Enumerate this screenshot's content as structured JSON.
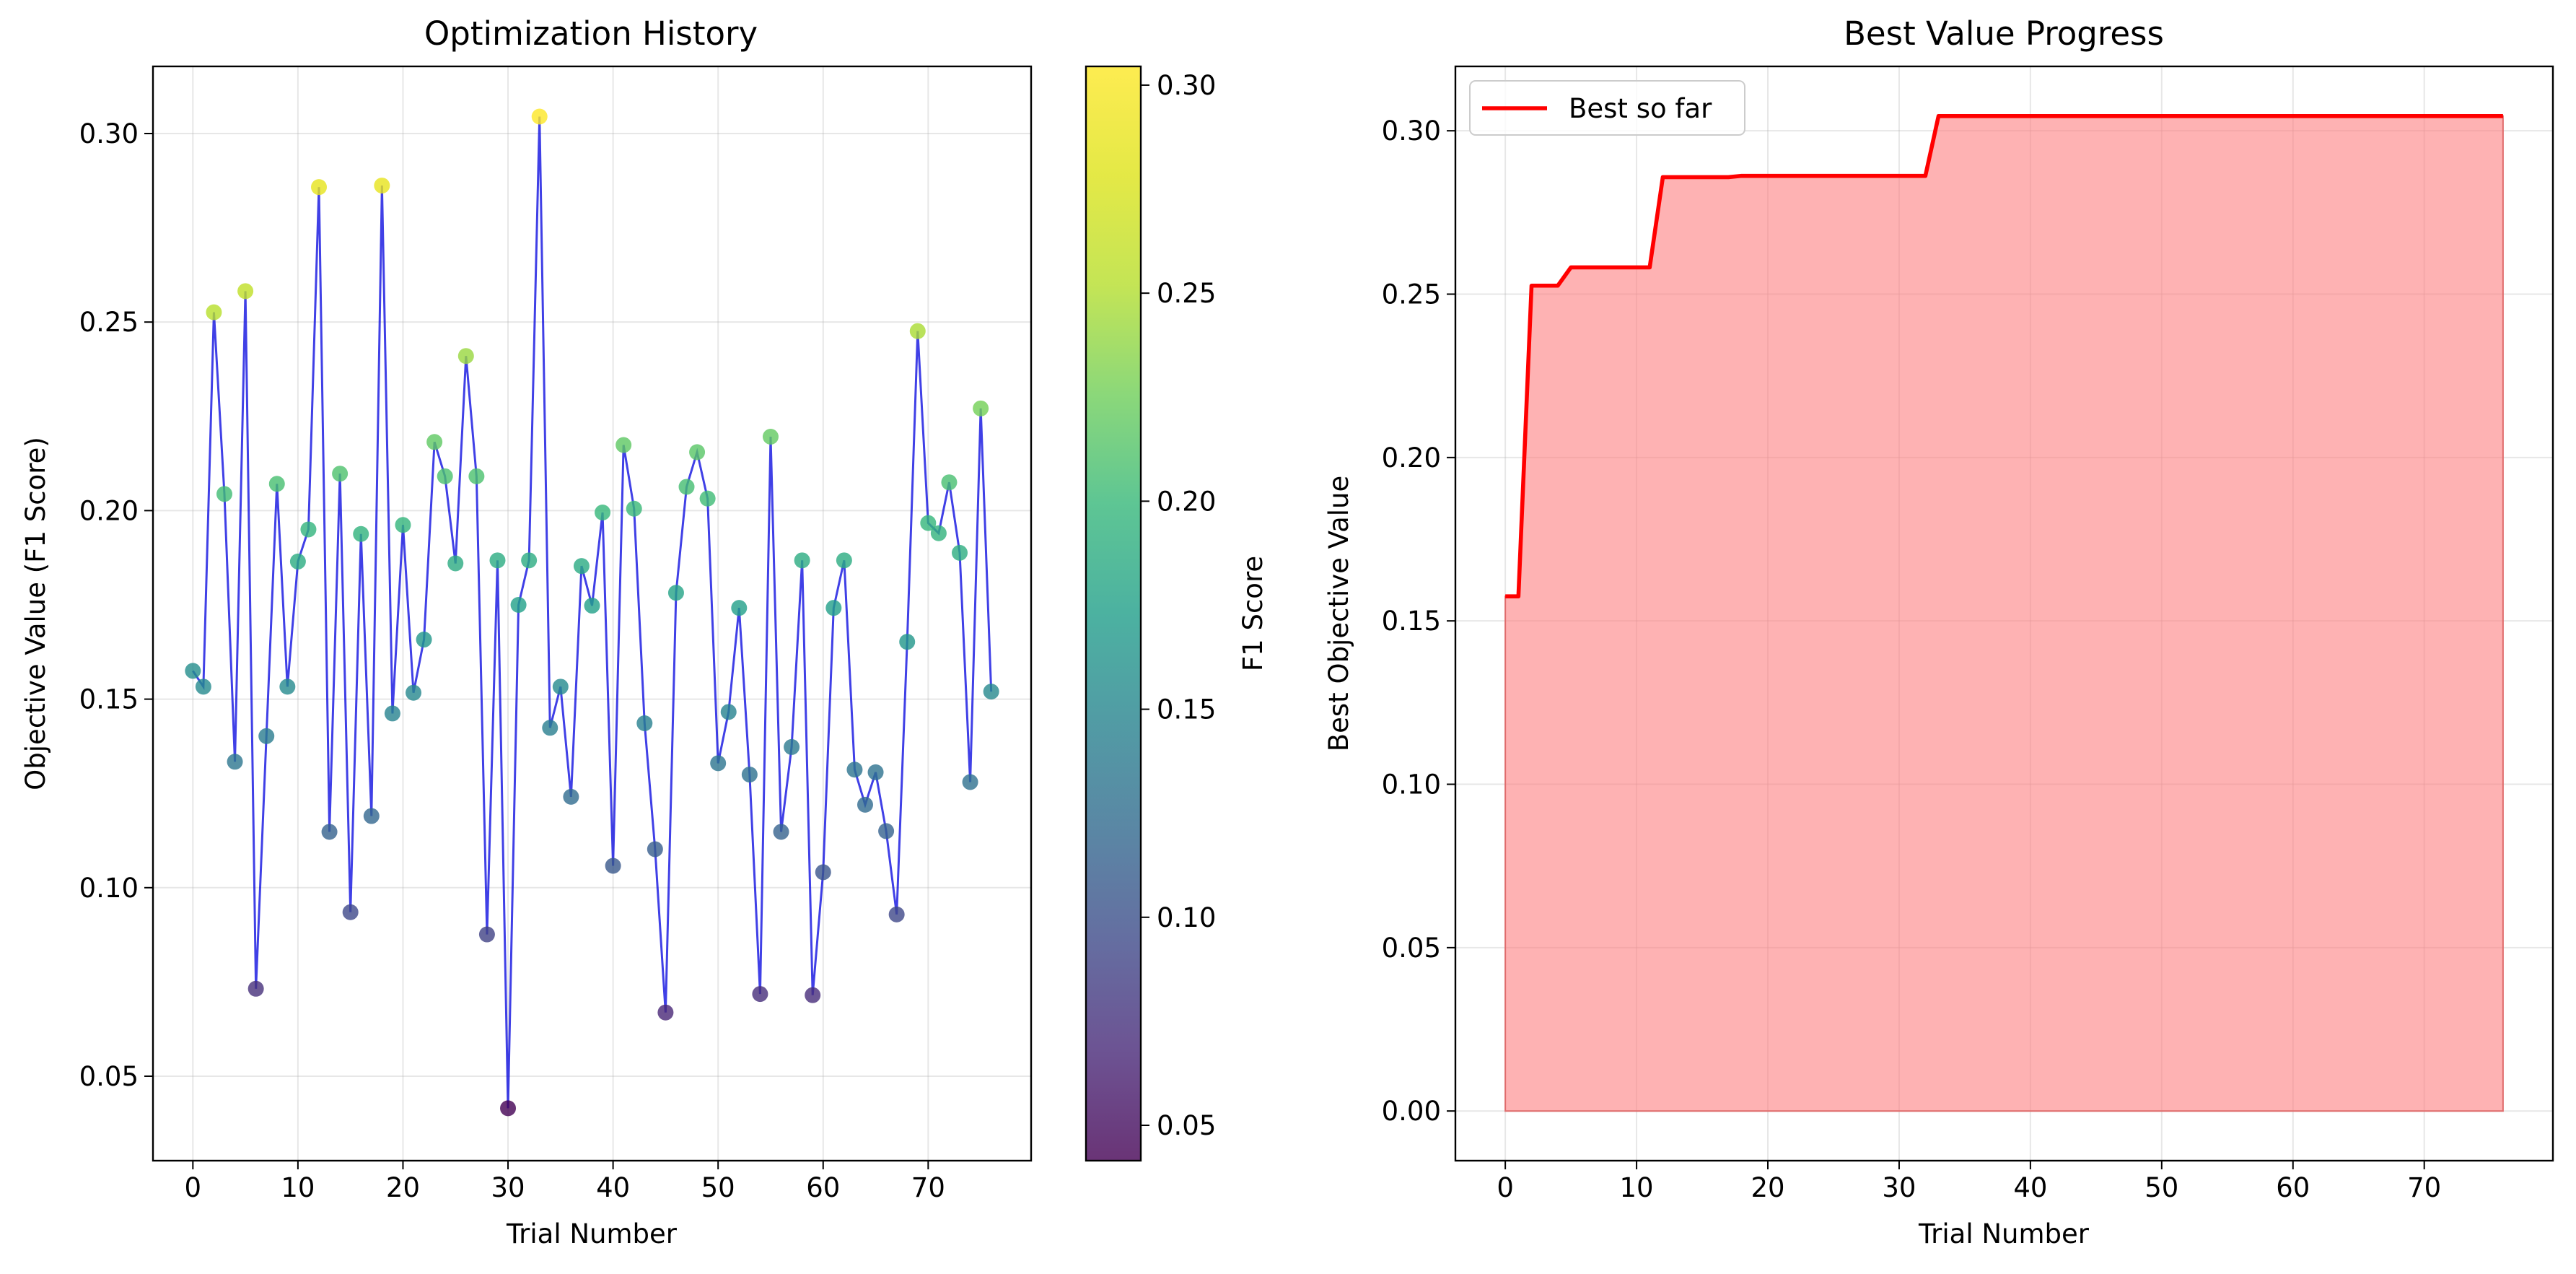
{
  "chart_data": [
    {
      "type": "scatter",
      "title": "Optimization History",
      "xlabel": "Trial Number",
      "ylabel": "Objective Value (F1 Score)",
      "xlim": [
        -3.8,
        79.8
      ],
      "ylim": [
        0.0276,
        0.3178
      ],
      "xticks": [
        0,
        10,
        20,
        30,
        40,
        50,
        60,
        70
      ],
      "yticks": [
        0.05,
        0.1,
        0.15,
        0.2,
        0.25,
        0.3
      ],
      "grid": true,
      "line_color": "#0000dd",
      "colormap": "viridis",
      "colorbar": {
        "label": "F1 Score",
        "range": [
          0.0415,
          0.3045
        ],
        "ticks": [
          0.05,
          0.1,
          0.15,
          0.2,
          0.25,
          0.3
        ]
      },
      "series": [
        {
          "x": [
            0,
            1,
            2,
            3,
            4,
            5,
            6,
            7,
            8,
            9,
            10,
            11,
            12,
            13,
            14,
            15,
            16,
            17,
            18,
            19,
            20,
            21,
            22,
            23,
            24,
            25,
            26,
            27,
            28,
            29,
            30,
            31,
            32,
            33,
            34,
            35,
            36,
            37,
            38,
            39,
            40,
            41,
            42,
            43,
            44,
            45,
            46,
            47,
            48,
            49,
            50,
            51,
            52,
            53,
            54,
            55,
            56,
            57,
            58,
            59,
            60,
            61,
            62,
            63,
            64,
            65,
            66,
            67,
            68,
            69,
            70,
            71,
            72,
            73,
            74,
            75,
            76
          ],
          "y": [
            0.1575,
            0.1533,
            0.2526,
            0.2044,
            0.1334,
            0.2582,
            0.0732,
            0.1402,
            0.2071,
            0.1533,
            0.1865,
            0.195,
            0.2858,
            0.1148,
            0.2098,
            0.0935,
            0.1938,
            0.119,
            0.2862,
            0.1462,
            0.1962,
            0.1517,
            0.1658,
            0.2182,
            0.2091,
            0.186,
            0.241,
            0.2091,
            0.0876,
            0.1868,
            0.0415,
            0.175,
            0.1868,
            0.3045,
            0.1424,
            0.1533,
            0.1241,
            0.1853,
            0.1748,
            0.1995,
            0.1058,
            0.2174,
            0.2005,
            0.1436,
            0.1102,
            0.0669,
            0.1782,
            0.2063,
            0.2155,
            0.2032,
            0.133,
            0.1466,
            0.1742,
            0.13,
            0.0718,
            0.2196,
            0.1148,
            0.1373,
            0.1868,
            0.0715,
            0.1041,
            0.1742,
            0.1868,
            0.1313,
            0.122,
            0.1306,
            0.115,
            0.0929,
            0.1652,
            0.2476,
            0.1967,
            0.194,
            0.2075,
            0.1888,
            0.128,
            0.2271,
            0.152
          ]
        }
      ]
    },
    {
      "type": "area",
      "title": "Best Value Progress",
      "xlabel": "Trial Number",
      "ylabel": "Best Objective Value",
      "xlim": [
        -3.8,
        79.8
      ],
      "ylim": [
        -0.0152,
        0.3197
      ],
      "xticks": [
        0,
        10,
        20,
        30,
        40,
        50,
        60,
        70
      ],
      "yticks": [
        0.0,
        0.05,
        0.1,
        0.15,
        0.2,
        0.25,
        0.3
      ],
      "grid": true,
      "legend_position": "top-left",
      "line_color": "#ff0000",
      "fill_color": "#fd7f80",
      "series": [
        {
          "name": "Best so far",
          "x": [
            0,
            1,
            2,
            3,
            4,
            5,
            6,
            7,
            8,
            9,
            10,
            11,
            12,
            13,
            14,
            15,
            16,
            17,
            18,
            19,
            20,
            21,
            22,
            23,
            24,
            25,
            26,
            27,
            28,
            29,
            30,
            31,
            32,
            33,
            34,
            35,
            36,
            37,
            38,
            39,
            40,
            41,
            42,
            43,
            44,
            45,
            46,
            47,
            48,
            49,
            50,
            51,
            52,
            53,
            54,
            55,
            56,
            57,
            58,
            59,
            60,
            61,
            62,
            63,
            64,
            65,
            66,
            67,
            68,
            69,
            70,
            71,
            72,
            73,
            74,
            75,
            76
          ],
          "y": [
            0.1575,
            0.1575,
            0.2526,
            0.2526,
            0.2526,
            0.2582,
            0.2582,
            0.2582,
            0.2582,
            0.2582,
            0.2582,
            0.2582,
            0.2858,
            0.2858,
            0.2858,
            0.2858,
            0.2858,
            0.2858,
            0.2862,
            0.2862,
            0.2862,
            0.2862,
            0.2862,
            0.2862,
            0.2862,
            0.2862,
            0.2862,
            0.2862,
            0.2862,
            0.2862,
            0.2862,
            0.2862,
            0.2862,
            0.3045,
            0.3045,
            0.3045,
            0.3045,
            0.3045,
            0.3045,
            0.3045,
            0.3045,
            0.3045,
            0.3045,
            0.3045,
            0.3045,
            0.3045,
            0.3045,
            0.3045,
            0.3045,
            0.3045,
            0.3045,
            0.3045,
            0.3045,
            0.3045,
            0.3045,
            0.3045,
            0.3045,
            0.3045,
            0.3045,
            0.3045,
            0.3045,
            0.3045,
            0.3045,
            0.3045,
            0.3045,
            0.3045,
            0.3045,
            0.3045,
            0.3045,
            0.3045,
            0.3045,
            0.3045,
            0.3045,
            0.3045,
            0.3045,
            0.3045,
            0.3045
          ]
        }
      ]
    }
  ]
}
